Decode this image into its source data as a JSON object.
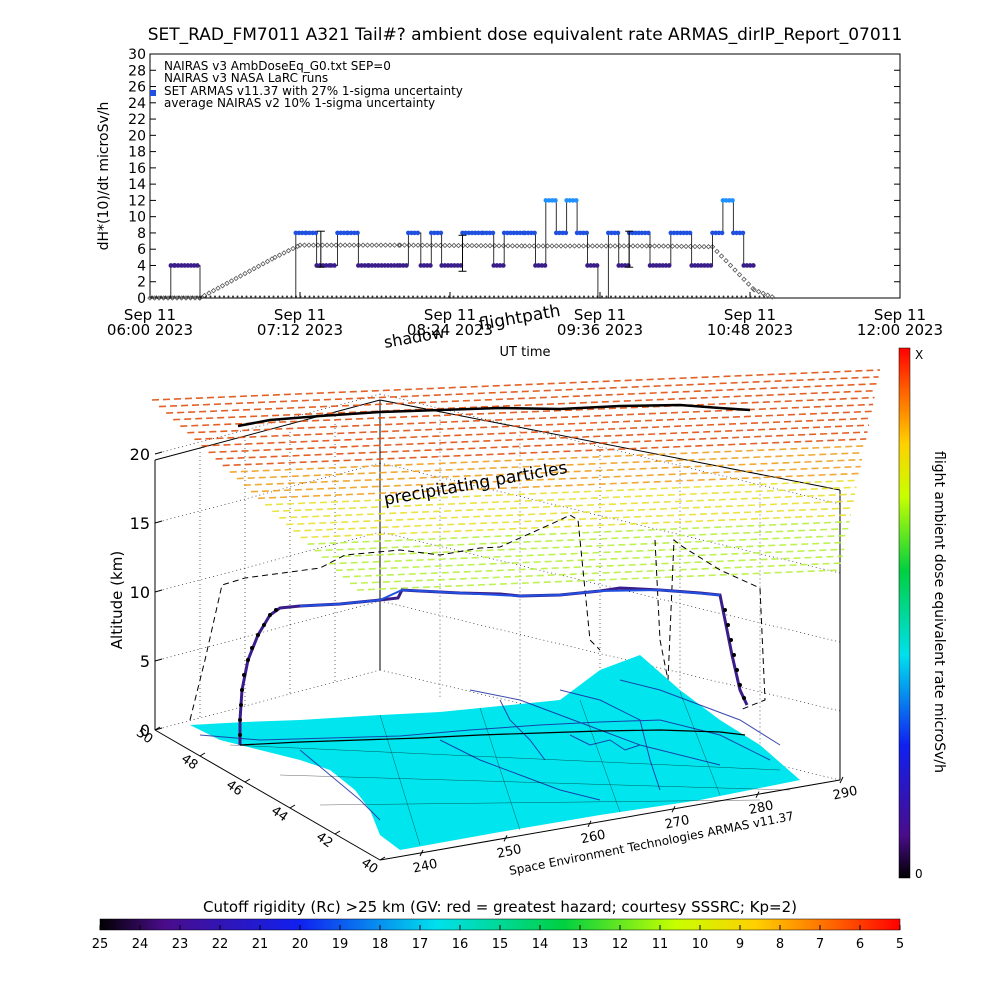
{
  "title": "SET_RAD_FM7011  A321 Tail#? ambient dose equivalent rate ARMAS_dirIP_Report_07011",
  "top_chart": {
    "ylabel": "dH*(10)/dt microSv/h",
    "xlabel": "UT time",
    "yticks": [
      "0",
      "2",
      "4",
      "6",
      "8",
      "10",
      "12",
      "14",
      "16",
      "18",
      "20",
      "22",
      "24",
      "26",
      "28",
      "30"
    ],
    "xticks": [
      {
        "l1": "Sep 11",
        "l2": "06:00 2023"
      },
      {
        "l1": "Sep 11",
        "l2": "07:12 2023"
      },
      {
        "l1": "Sep 11",
        "l2": "08:24 2023"
      },
      {
        "l1": "Sep 11",
        "l2": "09:36 2023"
      },
      {
        "l1": "Sep 11",
        "l2": "10:48 2023"
      },
      {
        "l1": "Sep 11",
        "l2": "12:00 2023"
      }
    ],
    "legend": [
      "NAIRAS v3 AmbDoseEq_G0.txt SEP=0",
      "NAIRAS v3 NASA LaRC runs",
      "SET ARMAS v11.37 with 27% 1-sigma uncertainty",
      "average NAIRAS v2 10% 1-sigma uncertainty"
    ]
  },
  "chart_data": [
    {
      "type": "scatter",
      "title": "",
      "xlabel": "UT time",
      "ylabel": "dH*(10)/dt microSv/h",
      "ylim": [
        0,
        30
      ],
      "xlim": [
        "2023-09-11 06:00",
        "2023-09-11 12:00"
      ],
      "series": [
        {
          "name": "SET ARMAS v11.37 with 27% 1-sigma uncertainty",
          "x": [
            "06:00",
            "06:10",
            "06:12",
            "06:24",
            "06:30",
            "07:00",
            "07:10",
            "07:15",
            "07:20",
            "07:27",
            "07:30",
            "07:35",
            "07:40",
            "07:45",
            "08:00",
            "08:04",
            "08:07",
            "08:10",
            "08:15",
            "08:20",
            "08:30",
            "08:40",
            "08:45",
            "08:50",
            "09:00",
            "09:05",
            "09:10",
            "09:15",
            "09:20",
            "09:25",
            "09:30",
            "09:35",
            "09:40",
            "09:45",
            "09:50",
            "10:00",
            "10:10",
            "10:20",
            "10:30",
            "10:35",
            "10:40",
            "10:45",
            "10:50"
          ],
          "y": [
            0,
            4,
            4,
            0,
            0,
            0,
            8,
            8,
            4,
            4,
            8,
            8,
            4,
            4,
            4,
            8,
            8,
            4,
            8,
            4,
            8,
            8,
            4,
            8,
            8,
            4,
            12,
            8,
            12,
            8,
            4,
            0,
            8,
            4,
            8,
            4,
            8,
            4,
            8,
            12,
            8,
            4,
            4
          ]
        },
        {
          "name": "NAIRAS v3 NASA LaRC runs",
          "x": [
            "06:00",
            "06:24",
            "07:00",
            "07:12",
            "08:00",
            "09:00",
            "10:00",
            "10:30",
            "10:50",
            "11:00"
          ],
          "y": [
            0,
            0,
            5,
            6.5,
            6.5,
            6.4,
            6.4,
            6.3,
            1,
            0
          ]
        }
      ]
    },
    {
      "type": "surface-3d",
      "title": "",
      "zlabel": "Altitude (km)",
      "zticks": [
        "0",
        "5",
        "10",
        "15",
        "20"
      ],
      "lat_ticks": [
        "40",
        "42",
        "44",
        "46",
        "48",
        "50"
      ],
      "lon_ticks": [
        "240",
        "250",
        "260",
        "270",
        "280",
        "290"
      ],
      "annotations": [
        "shadow",
        "flightpath",
        "precipitating particles"
      ]
    }
  ],
  "colorbar_right": {
    "label": "flight ambient dose equivalent rate microSv/h",
    "top": "X",
    "bottom": "0"
  },
  "colorbar_bottom": {
    "label": "Cutoff rigidity (Rc) >25 km (GV: red = greatest hazard; courtesy SSSRC; Kp=2)",
    "ticks": [
      "25",
      "24",
      "23",
      "22",
      "21",
      "20",
      "19",
      "18",
      "17",
      "16",
      "15",
      "14",
      "13",
      "12",
      "11",
      "10",
      "9",
      "8",
      "7",
      "6",
      "5"
    ]
  },
  "credit": "Space Environment Technologies ARMAS v11.37",
  "colors": {
    "armas_high": "#1e90ff",
    "armas_mid": "#2050e0",
    "armas_low": "#3a1c8a",
    "nairas": "#555555",
    "surface": "#00e5ee"
  }
}
